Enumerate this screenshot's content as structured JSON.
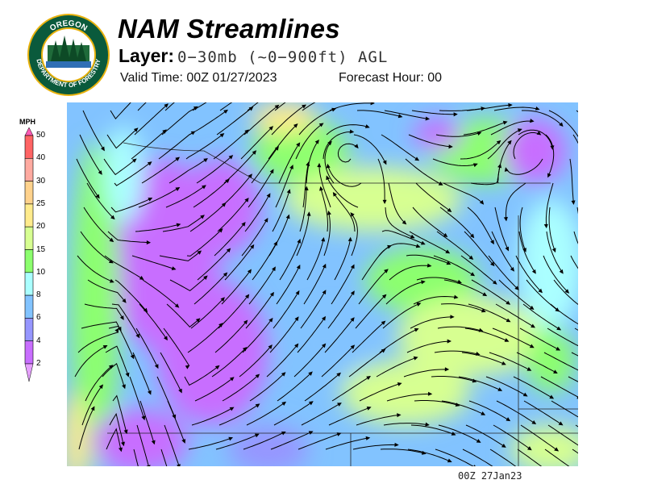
{
  "logo": {
    "top_text": "OREGON",
    "bottom_text": "DEPARTMENT OF FORESTRY"
  },
  "header": {
    "title": "NAM Streamlines",
    "layer_label": "Layer:",
    "layer_value": "0−30mb (~0−900ft) AGL",
    "valid_time": "Valid Time: 00Z 01/27/2023",
    "forecast_hour": "Forecast Hour: 00"
  },
  "legend": {
    "unit": "MPH",
    "levels": [
      "50",
      "40",
      "30",
      "25",
      "20",
      "15",
      "10",
      "8",
      "6",
      "4",
      "2"
    ],
    "colors": [
      "#ff6464",
      "#ffaaa0",
      "#ffd28c",
      "#ffeb8c",
      "#d7ff91",
      "#8cff6e",
      "#aaffff",
      "#82c3ff",
      "#9696ff",
      "#c86eff"
    ],
    "over_color": "#ff5ab4",
    "under_color": "#e6a0ff"
  },
  "map": {
    "stamp": "00Z 27Jan23"
  }
}
